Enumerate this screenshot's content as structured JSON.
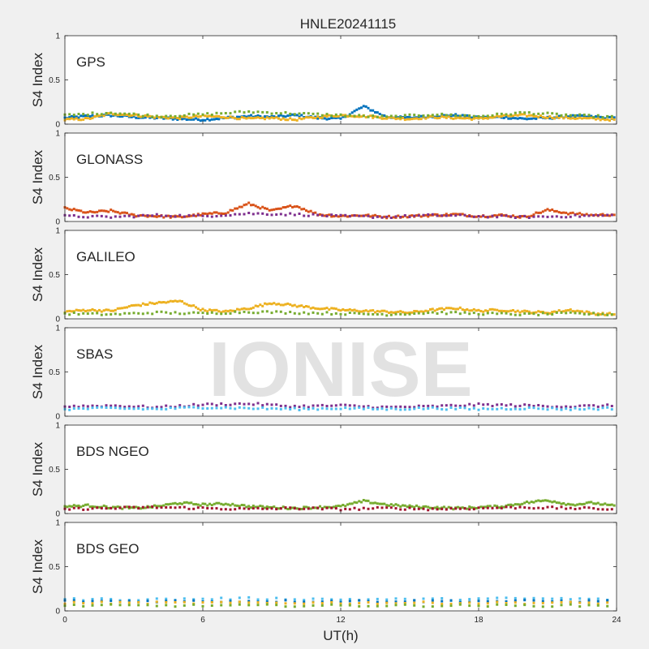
{
  "figure": {
    "title": "HNLE20241115",
    "xlabel": "UT(h)",
    "watermark": "IONISE"
  },
  "chart_data": {
    "type": "scatter",
    "title": "HNLE20241115",
    "xlabel": "UT(h)",
    "ylabel": "S4 Index",
    "xlim": [
      0,
      24
    ],
    "ylim": [
      0,
      1
    ],
    "xticks": [
      "0",
      "6",
      "12",
      "18",
      "24"
    ],
    "yticks": [
      "0",
      "0.5",
      "1"
    ],
    "grid": false,
    "series_colors": [
      "#0072bd",
      "#d95319",
      "#edb120",
      "#7e2f8e",
      "#77ac30",
      "#4dbeee",
      "#a2142f"
    ],
    "panels": [
      {
        "name": "GPS",
        "ylabel": "S4 Index",
        "series": [
          {
            "x": [
              0,
              1,
              2,
              3,
              4,
              5,
              6,
              7,
              8,
              9,
              10,
              11,
              12,
              13,
              14,
              15,
              16,
              17,
              18,
              19,
              20,
              21,
              22,
              23,
              24
            ],
            "y": [
              0.07,
              0.09,
              0.1,
              0.08,
              0.07,
              0.06,
              0.05,
              0.07,
              0.09,
              0.08,
              0.1,
              0.07,
              0.06,
              0.2,
              0.08,
              0.07,
              0.09,
              0.1,
              0.07,
              0.08,
              0.06,
              0.07,
              0.09,
              0.08,
              0.07
            ]
          },
          {
            "x": [
              0,
              1,
              2,
              3,
              4,
              5,
              6,
              7,
              8,
              9,
              10,
              11,
              12,
              13,
              14,
              15,
              16,
              17,
              18,
              19,
              20,
              21,
              22,
              23,
              24
            ],
            "y": [
              0.05,
              0.06,
              0.12,
              0.1,
              0.08,
              0.07,
              0.09,
              0.08,
              0.06,
              0.07,
              0.05,
              0.08,
              0.1,
              0.09,
              0.07,
              0.06,
              0.08,
              0.07,
              0.06,
              0.09,
              0.1,
              0.08,
              0.07,
              0.06,
              0.05
            ]
          },
          {
            "x": [
              0,
              2,
              4,
              6,
              8,
              10,
              12,
              14,
              16,
              18,
              20,
              22,
              24
            ],
            "y": [
              0.1,
              0.13,
              0.09,
              0.11,
              0.14,
              0.12,
              0.1,
              0.08,
              0.11,
              0.09,
              0.13,
              0.1,
              0.08
            ]
          }
        ]
      },
      {
        "name": "GLONASS",
        "ylabel": "S4 Index",
        "series": [
          {
            "x": [
              0,
              1,
              2,
              3,
              4,
              5,
              6,
              7,
              8,
              9,
              10,
              11,
              12,
              13,
              14,
              15,
              16,
              17,
              18,
              19,
              20,
              21,
              22,
              23,
              24
            ],
            "y": [
              0.15,
              0.1,
              0.12,
              0.07,
              0.06,
              0.05,
              0.08,
              0.1,
              0.2,
              0.12,
              0.18,
              0.08,
              0.06,
              0.07,
              0.05,
              0.06,
              0.07,
              0.08,
              0.06,
              0.07,
              0.05,
              0.13,
              0.09,
              0.07,
              0.08
            ]
          },
          {
            "x": [
              0,
              2,
              4,
              6,
              8,
              10,
              12,
              14,
              16,
              18,
              20,
              22,
              24
            ],
            "y": [
              0.06,
              0.05,
              0.07,
              0.06,
              0.09,
              0.08,
              0.06,
              0.05,
              0.07,
              0.06,
              0.05,
              0.06,
              0.07
            ]
          }
        ]
      },
      {
        "name": "GALILEO",
        "ylabel": "S4 Index",
        "series": [
          {
            "x": [
              0,
              1,
              2,
              3,
              4,
              5,
              6,
              7,
              8,
              9,
              10,
              11,
              12,
              13,
              14,
              15,
              16,
              17,
              18,
              19,
              20,
              21,
              22,
              23,
              24
            ],
            "y": [
              0.08,
              0.1,
              0.09,
              0.15,
              0.18,
              0.2,
              0.1,
              0.08,
              0.12,
              0.18,
              0.15,
              0.12,
              0.1,
              0.09,
              0.08,
              0.07,
              0.1,
              0.12,
              0.09,
              0.1,
              0.08,
              0.07,
              0.1,
              0.06,
              0.05
            ]
          },
          {
            "x": [
              0,
              2,
              4,
              6,
              8,
              10,
              12,
              14,
              16,
              18,
              20,
              22,
              24
            ],
            "y": [
              0.06,
              0.05,
              0.07,
              0.06,
              0.08,
              0.07,
              0.06,
              0.05,
              0.07,
              0.06,
              0.05,
              0.06,
              0.05
            ]
          }
        ]
      },
      {
        "name": "SBAS",
        "ylabel": "S4 Index",
        "series": [
          {
            "x": [
              0,
              2,
              4,
              6,
              8,
              10,
              12,
              14,
              16,
              18,
              20,
              22,
              24
            ],
            "y": [
              0.11,
              0.12,
              0.1,
              0.13,
              0.14,
              0.11,
              0.12,
              0.1,
              0.11,
              0.13,
              0.12,
              0.11,
              0.12
            ]
          },
          {
            "x": [
              0,
              2,
              4,
              6,
              8,
              10,
              12,
              14,
              16,
              18,
              20,
              22,
              24
            ],
            "y": [
              0.08,
              0.09,
              0.08,
              0.1,
              0.09,
              0.08,
              0.09,
              0.08,
              0.09,
              0.08,
              0.09,
              0.08,
              0.09
            ]
          }
        ]
      },
      {
        "name": "BDS NGEO",
        "ylabel": "S4 Index",
        "series": [
          {
            "x": [
              0,
              1,
              2,
              3,
              4,
              5,
              6,
              7,
              8,
              9,
              10,
              11,
              12,
              13,
              14,
              15,
              16,
              17,
              18,
              19,
              20,
              21,
              22,
              23,
              24
            ],
            "y": [
              0.08,
              0.09,
              0.07,
              0.06,
              0.08,
              0.12,
              0.1,
              0.11,
              0.08,
              0.07,
              0.06,
              0.07,
              0.08,
              0.14,
              0.1,
              0.08,
              0.07,
              0.06,
              0.07,
              0.08,
              0.12,
              0.15,
              0.1,
              0.12,
              0.08
            ]
          },
          {
            "x": [
              0,
              2,
              4,
              6,
              8,
              10,
              12,
              14,
              16,
              18,
              20,
              22,
              24
            ],
            "y": [
              0.05,
              0.06,
              0.07,
              0.06,
              0.05,
              0.06,
              0.05,
              0.06,
              0.05,
              0.06,
              0.07,
              0.06,
              0.05
            ]
          }
        ]
      },
      {
        "name": "BDS GEO",
        "ylabel": "S4 Index",
        "series": [
          {
            "x": [
              0,
              4,
              8,
              12,
              16,
              20,
              24
            ],
            "y": [
              0.13,
              0.13,
              0.14,
              0.13,
              0.13,
              0.14,
              0.13
            ]
          },
          {
            "x": [
              0,
              4,
              8,
              12,
              16,
              20,
              24
            ],
            "y": [
              0.11,
              0.11,
              0.11,
              0.11,
              0.11,
              0.11,
              0.11
            ]
          },
          {
            "x": [
              0,
              4,
              8,
              12,
              16,
              20,
              24
            ],
            "y": [
              0.09,
              0.09,
              0.09,
              0.09,
              0.09,
              0.09,
              0.09
            ]
          },
          {
            "x": [
              0,
              4,
              8,
              12,
              16,
              20,
              24
            ],
            "y": [
              0.06,
              0.06,
              0.06,
              0.06,
              0.06,
              0.06,
              0.06
            ]
          }
        ]
      }
    ]
  }
}
